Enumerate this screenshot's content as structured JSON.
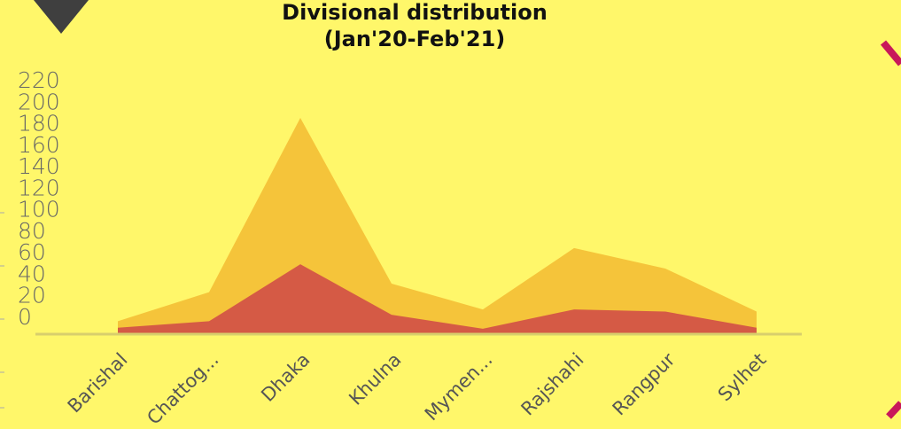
{
  "chart_data": {
    "type": "area",
    "title": "Divisional distribution",
    "subtitle": "(Jan'20-Feb'21)",
    "categories": [
      "Barishal",
      "Chattog...",
      "Dhaka",
      "Khulna",
      "Mymen...",
      "Rajshahi",
      "Rangpur",
      "Sylhet"
    ],
    "series": [
      {
        "color": "#f5c43a",
        "values": [
          12,
          39,
          201,
          47,
          23,
          80,
          61,
          21
        ]
      },
      {
        "color": "#d55a45",
        "values": [
          6,
          12,
          65,
          18,
          5,
          23,
          21,
          6
        ]
      }
    ],
    "ylim": [
      0,
      220
    ],
    "yticks": [
      0,
      20,
      40,
      60,
      80,
      100,
      120,
      140,
      160,
      180,
      200,
      220
    ]
  }
}
